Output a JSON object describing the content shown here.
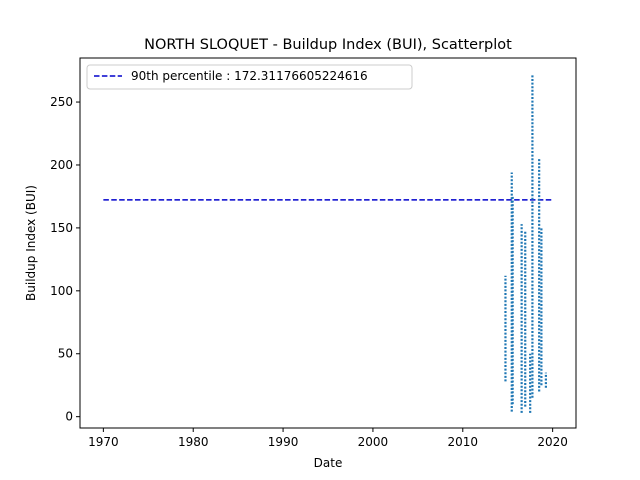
{
  "chart_data": {
    "type": "scatter",
    "title": "NORTH SLOQUET - Buildup Index (BUI), Scatterplot",
    "xlabel": "Date",
    "ylabel": "Buildup Index (BUI)",
    "xlim": [
      1967.4,
      2022.6
    ],
    "ylim": [
      -9,
      285
    ],
    "xticks": [
      1970,
      1980,
      1990,
      2000,
      2010,
      2020
    ],
    "yticks": [
      0,
      50,
      100,
      150,
      200,
      250
    ],
    "grid": false,
    "legend_position": "top-left",
    "series": [
      {
        "name": "BUI",
        "color": "#1f77b4",
        "segments": [
          {
            "x": 2014.75,
            "ymin": 28,
            "ymax": 112
          },
          {
            "x": 2015.45,
            "ymin": 4,
            "ymax": 194
          },
          {
            "x": 2015.55,
            "ymin": 10,
            "ymax": 175
          },
          {
            "x": 2016.55,
            "ymin": 3,
            "ymax": 153
          },
          {
            "x": 2016.95,
            "ymin": 8,
            "ymax": 148
          },
          {
            "x": 2017.5,
            "ymin": 3,
            "ymax": 50
          },
          {
            "x": 2017.75,
            "ymin": 15,
            "ymax": 272
          },
          {
            "x": 2018.5,
            "ymin": 20,
            "ymax": 205
          },
          {
            "x": 2018.75,
            "ymin": 25,
            "ymax": 150
          },
          {
            "x": 2019.25,
            "ymin": 23,
            "ymax": 35
          }
        ]
      }
    ],
    "reference_lines": [
      {
        "label": "90th percentile : 172.31176605224616",
        "y": 172.31176605224616,
        "x_start": 1970,
        "x_end": 2020,
        "color": "#0000cc",
        "style": "dashed"
      }
    ]
  }
}
